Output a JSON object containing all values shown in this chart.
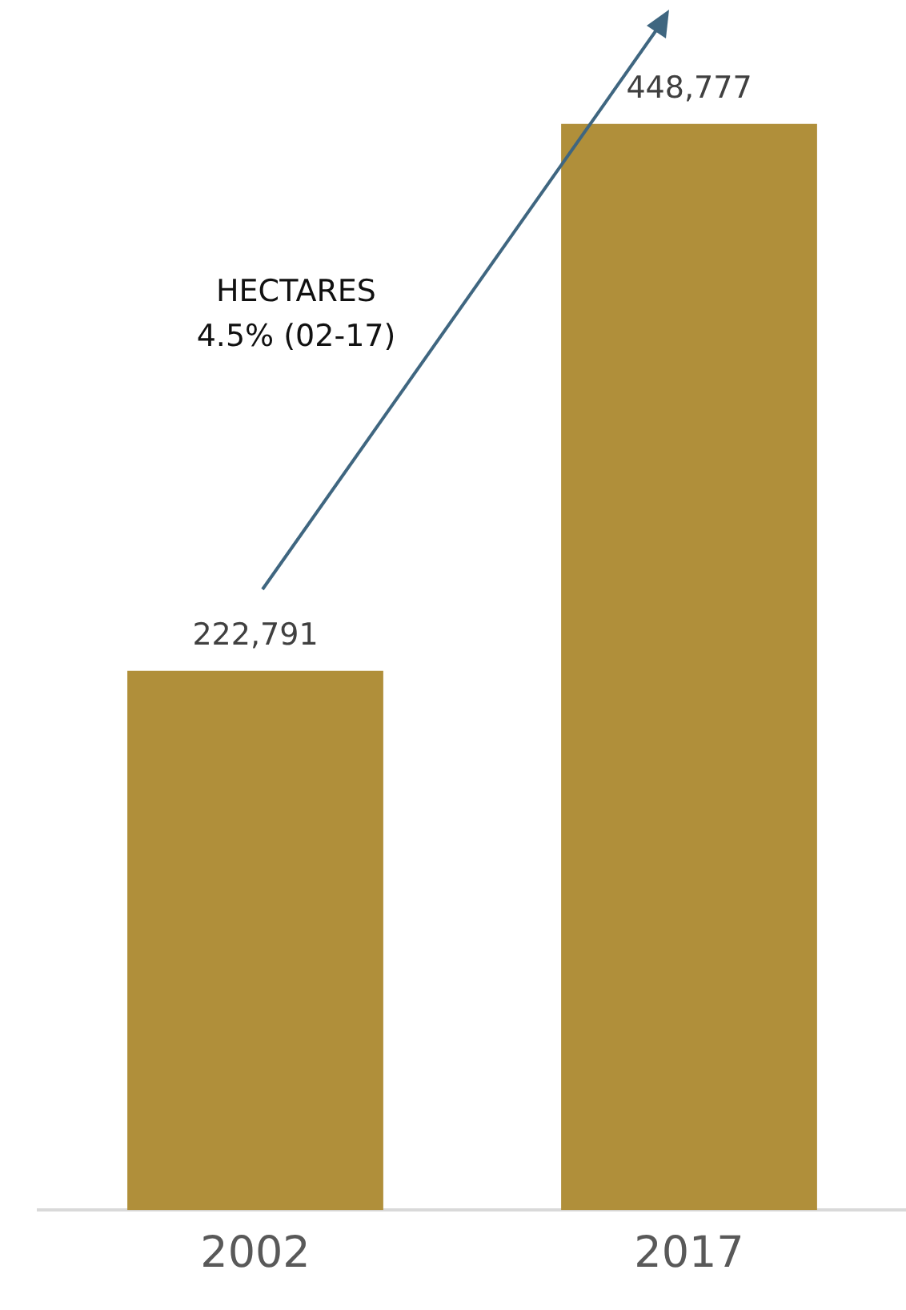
{
  "chart_data": {
    "type": "bar",
    "categories": [
      "2002",
      "2017"
    ],
    "values": [
      222791,
      448777
    ],
    "color": "#b08f3a",
    "value_labels": [
      "222,791",
      "448,777"
    ],
    "grid": false,
    "legend": false,
    "annotations": [
      "HECTARES",
      "4.5% (02-17)"
    ]
  }
}
